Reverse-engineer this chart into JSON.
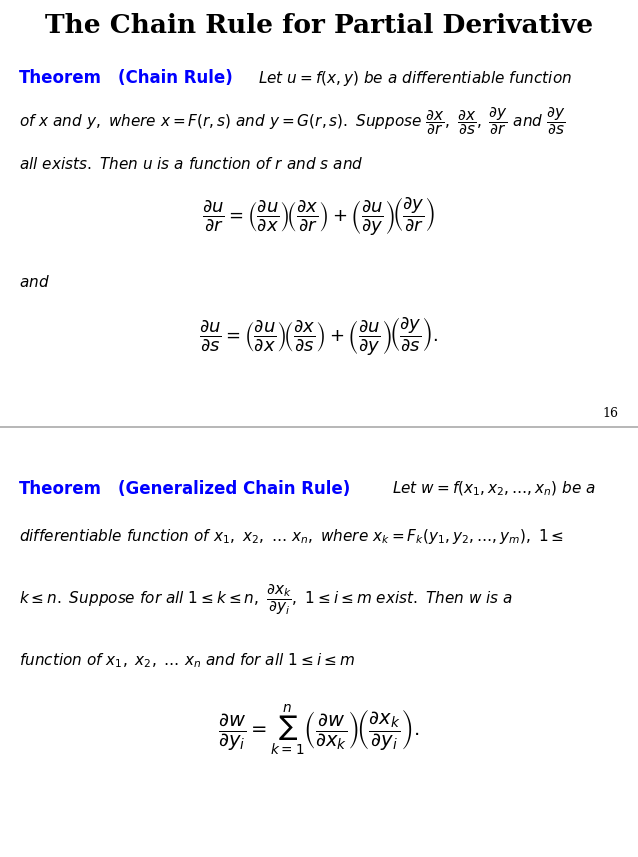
{
  "title": "The Chain Rule for Partial Derivative",
  "title_fontsize": 20,
  "title_color": "#000000",
  "blue_color": "#0000FF",
  "black_color": "#000000",
  "divider_color": "#AAAAAA",
  "page_number": "16",
  "theorem1_label": "Theorem",
  "theorem1_title": "(Chain Rule)",
  "theorem2_label": "Theorem",
  "theorem2_title": "(Generalized Chain Rule)",
  "and_text": "and",
  "fig_width": 6.38,
  "fig_height": 8.57,
  "dpi": 100
}
